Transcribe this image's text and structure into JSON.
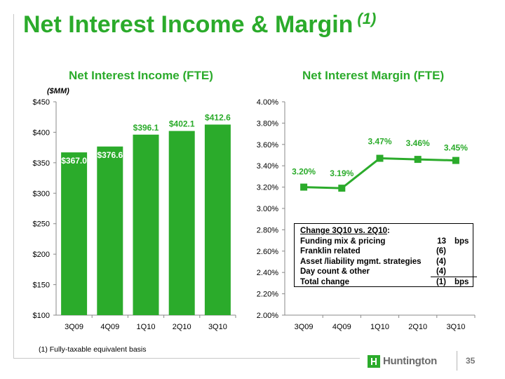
{
  "title": "Net Interest Income & Margin",
  "title_footnote_mark": "(1)",
  "subtitles": {
    "left": "Net Interest Income (FTE)",
    "right": "Net Interest Margin (FTE)"
  },
  "unit_label": "($MM)",
  "colors": {
    "brand_green": "#2bab2b",
    "line_green": "#2bab2b"
  },
  "chart_data": [
    {
      "type": "bar",
      "title": "Net Interest Income (FTE)",
      "ylabel": "($MM)",
      "categories": [
        "3Q09",
        "4Q09",
        "1Q10",
        "2Q10",
        "3Q10"
      ],
      "values": [
        367.0,
        376.6,
        396.1,
        402.1,
        412.6
      ],
      "data_labels": [
        "$367.0",
        "$376.6",
        "$396.1",
        "$402.1",
        "$412.6"
      ],
      "label_mode": [
        true,
        true,
        false,
        false,
        false
      ],
      "ylim": [
        100,
        450
      ],
      "yticks": [
        100,
        150,
        200,
        250,
        300,
        350,
        400,
        450
      ],
      "ytick_labels": [
        "$100",
        "$150",
        "$200",
        "$250",
        "$300",
        "$350",
        "$400",
        "$450"
      ]
    },
    {
      "type": "line",
      "title": "Net Interest Margin (FTE)",
      "categories": [
        "3Q09",
        "4Q09",
        "1Q10",
        "2Q10",
        "3Q10"
      ],
      "values": [
        3.2,
        3.19,
        3.47,
        3.46,
        3.45
      ],
      "data_labels": [
        "3.20%",
        "3.19%",
        "3.47%",
        "3.46%",
        "3.45%"
      ],
      "ylim": [
        2.0,
        4.0
      ],
      "yticks": [
        2.0,
        2.2,
        2.4,
        2.6,
        2.8,
        3.0,
        3.2,
        3.4,
        3.6,
        3.8,
        4.0
      ],
      "ytick_labels": [
        "2.00%",
        "2.20%",
        "2.40%",
        "2.60%",
        "2.80%",
        "3.00%",
        "3.20%",
        "3.40%",
        "3.60%",
        "3.80%",
        "4.00%"
      ]
    }
  ],
  "change_box": {
    "heading": "Change 3Q10  vs. 2Q10",
    "heading_suffix": ":",
    "rows": [
      {
        "label": "Funding mix & pricing",
        "value": "13",
        "unit": "bps"
      },
      {
        "label": "Franklin related",
        "value": "(6)",
        "unit": ""
      },
      {
        "label": "Asset /liability mgmt. strategies",
        "value": "(4)",
        "unit": ""
      },
      {
        "label": "Day count & other",
        "value": "(4)",
        "unit": ""
      }
    ],
    "total": {
      "label": "Total change",
      "value": "(1)",
      "unit": "bps"
    }
  },
  "footnote": "(1)  Fully-taxable equivalent basis",
  "logo_text": "Huntington",
  "page_number": "35"
}
